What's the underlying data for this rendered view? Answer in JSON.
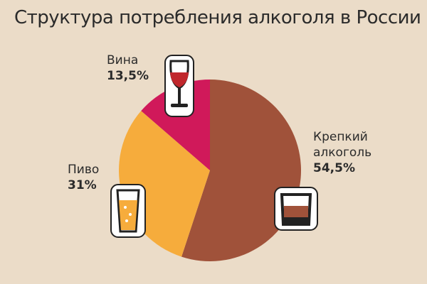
{
  "chart_data": {
    "type": "pie",
    "title": "Структура потребления алкоголя в России",
    "categories": [
      "Крепкий алкоголь",
      "Пиво",
      "Вина"
    ],
    "values": [
      54.5,
      31,
      13.5
    ],
    "value_labels": [
      "54,5%",
      "31%",
      "13,5%"
    ],
    "colors": [
      "#a0523a",
      "#f6ac3c",
      "#d0195a"
    ]
  }
}
